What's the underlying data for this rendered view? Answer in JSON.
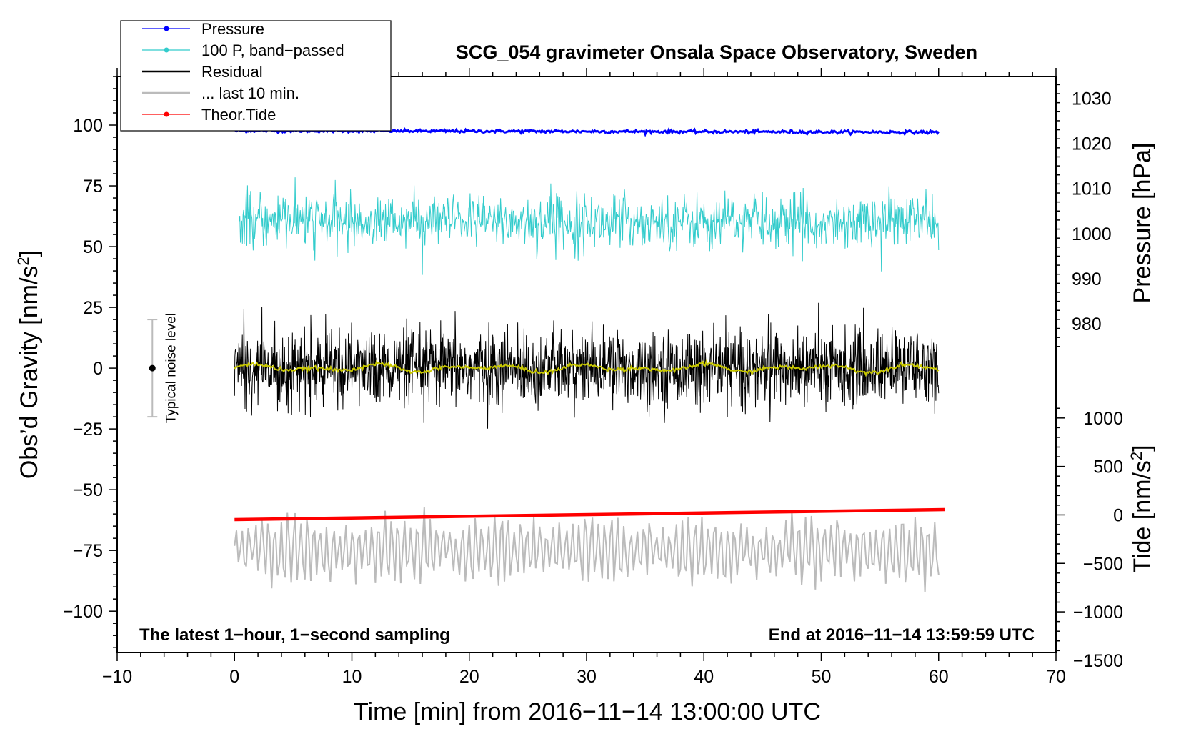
{
  "chart_data": {
    "type": "line",
    "title": "SCG_054 gravimeter Onsala Space Observatory, Sweden",
    "xlabel": "Time [min] from 2016−11−14 13:00:00 UTC",
    "ylabel_left": "Obs’d Gravity [nm/s",
    "ylabel_left_sup": "2",
    "ylabel_left_end": "]",
    "ylabel_right_pressure": "Pressure [hPa]",
    "ylabel_right_tide": "Tide [nm/s",
    "ylabel_right_tide_sup": "2",
    "ylabel_right_tide_end": "]",
    "xlim": [
      -10,
      70
    ],
    "ylim": [
      -117,
      120
    ],
    "x_ticks": [
      {
        "v": -10,
        "label": "−10"
      },
      {
        "v": 0,
        "label": "0"
      },
      {
        "v": 10,
        "label": "10"
      },
      {
        "v": 20,
        "label": "20"
      },
      {
        "v": 30,
        "label": "30"
      },
      {
        "v": 40,
        "label": "40"
      },
      {
        "v": 50,
        "label": "50"
      },
      {
        "v": 60,
        "label": "60"
      },
      {
        "v": 70,
        "label": "70"
      }
    ],
    "y_ticks": [
      {
        "v": 100,
        "label": "100"
      },
      {
        "v": 75,
        "label": "75"
      },
      {
        "v": 50,
        "label": "50"
      },
      {
        "v": 25,
        "label": "25"
      },
      {
        "v": 0,
        "label": "0"
      },
      {
        "v": -25,
        "label": "−25"
      },
      {
        "v": -50,
        "label": "−50"
      },
      {
        "v": -75,
        "label": "−75"
      },
      {
        "v": -100,
        "label": "−100"
      }
    ],
    "pressure_axis": {
      "ticks": [
        {
          "v": 1030,
          "label": "1030"
        },
        {
          "v": 1020,
          "label": "1020"
        },
        {
          "v": 1010,
          "label": "1010"
        },
        {
          "v": 1000,
          "label": "1000"
        },
        {
          "v": 990,
          "label": "990"
        },
        {
          "v": 980,
          "label": "980"
        }
      ],
      "map": {
        "value_a": 1020,
        "gravity_a": 92.5,
        "value_b": 980,
        "gravity_b": 18.2
      }
    },
    "tide_axis": {
      "ticks": [
        {
          "v": 1000,
          "label": "1000"
        },
        {
          "v": 500,
          "label": "500"
        },
        {
          "v": 0,
          "label": "0"
        },
        {
          "v": -500,
          "label": "−500"
        },
        {
          "v": -1000,
          "label": "−1000"
        },
        {
          "v": -1500,
          "label": "−1500"
        }
      ],
      "map": {
        "value_a": 1000,
        "gravity_a": -20.5,
        "value_b": -1500,
        "gravity_b": -120.2
      }
    },
    "legend": [
      {
        "label": "Pressure",
        "color": "#0000ff",
        "marker": true
      },
      {
        "label": "100 P, band−passed",
        "color": "#33cccc",
        "marker": true
      },
      {
        "label": "Residual",
        "color": "#000000",
        "marker": false
      },
      {
        "label": "... last 10 min.",
        "color": "#bbbbbb",
        "marker": false
      },
      {
        "label": "Theor.Tide",
        "color": "#ff0000",
        "marker": true
      }
    ],
    "series": [
      {
        "name": "Pressure",
        "color": "#0000ff",
        "x_range": [
          0,
          60
        ],
        "start": 97.7,
        "end": 97.1,
        "noise": 0.3
      },
      {
        "name": "100 P, band-passed",
        "color": "#33cccc",
        "x_range": [
          0.4,
          60
        ],
        "center": 60.5,
        "amplitude": 5.5
      },
      {
        "name": "Residual",
        "color": "#000000",
        "x_range": [
          0,
          60
        ],
        "center": 0,
        "amplitude": 7.5
      },
      {
        "name": "Residual smoothed",
        "color": "#c8c800",
        "x_range": [
          0,
          60
        ],
        "center": 0,
        "amplitude": 1.8
      },
      {
        "name": "... last 10 min.",
        "color": "#bbbbbb",
        "x_range": [
          0,
          60
        ],
        "center": -75,
        "amplitude": 13
      },
      {
        "name": "Theor.Tide",
        "color": "#ff0000",
        "x_range": [
          0,
          60.5
        ],
        "start": -62.3,
        "end": -58.2
      }
    ],
    "noise_level": {
      "label": "Typical noise level",
      "x": -7,
      "center": 0,
      "half_range": 20
    },
    "annotations": {
      "left": "The latest 1−hour, 1−second sampling",
      "right": "End at 2016−11−14 13:59:59 UTC"
    }
  }
}
